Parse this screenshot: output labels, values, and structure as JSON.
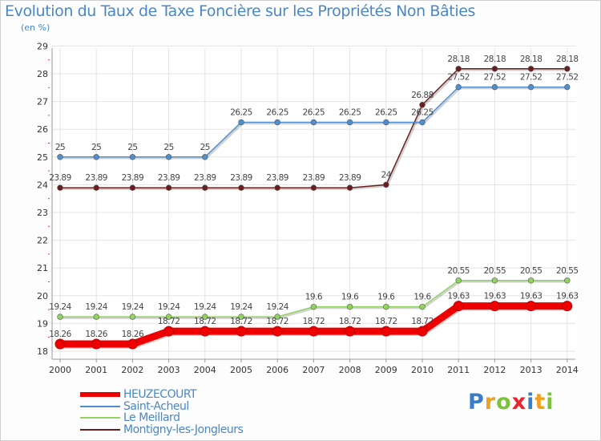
{
  "chart_data": {
    "type": "line",
    "title": "Evolution du Taux de Taxe Foncière sur les Propriétés Non Bâties",
    "subtitle": "(en %)",
    "xlabel": "",
    "ylabel": "",
    "x": [
      "2000",
      "2001",
      "2002",
      "2003",
      "2004",
      "2005",
      "2006",
      "2007",
      "2008",
      "2009",
      "2010",
      "2011",
      "2012",
      "2013",
      "2014"
    ],
    "yticks": [
      18,
      19,
      20,
      21,
      22,
      23,
      24,
      25,
      26,
      27,
      28,
      29
    ],
    "ylim": [
      18,
      29
    ],
    "grid": true,
    "legend_position": "bottom-left",
    "series": [
      {
        "name": "HEUZECOURT",
        "color": "#ee0000",
        "values": [
          18.26,
          18.26,
          18.26,
          18.72,
          18.72,
          18.72,
          18.72,
          18.72,
          18.72,
          18.72,
          18.72,
          19.63,
          19.63,
          19.63,
          19.63
        ],
        "labels": [
          "18.26",
          "18.26",
          "18.26",
          "18.72",
          "18.72",
          "18.72",
          "18.72",
          "18.72",
          "18.72",
          "18.72",
          "18.72",
          "19.63",
          "19.63",
          "19.63",
          "19.63"
        ]
      },
      {
        "name": "Saint-Acheul",
        "color": "#4f8fd0",
        "values": [
          25,
          25,
          25,
          25,
          25,
          26.25,
          26.25,
          26.25,
          26.25,
          26.25,
          26.25,
          27.52,
          27.52,
          27.52,
          27.52
        ],
        "labels": [
          "25",
          "25",
          "25",
          "25",
          "25",
          "26.25",
          "26.25",
          "26.25",
          "26.25",
          "26.25",
          "26.25",
          "27.52",
          "27.52",
          "27.52",
          "27.52"
        ]
      },
      {
        "name": "Le Meillard",
        "color": "#90d45e",
        "values": [
          19.24,
          19.24,
          19.24,
          19.24,
          19.24,
          19.24,
          19.24,
          19.6,
          19.6,
          19.6,
          19.6,
          20.55,
          20.55,
          20.55,
          20.55
        ],
        "labels": [
          "19.24",
          "19.24",
          "19.24",
          "19.24",
          "19.24",
          "19.24",
          "19.24",
          "19.6",
          "19.6",
          "19.6",
          "19.6",
          "20.55",
          "20.55",
          "20.55",
          "20.55"
        ]
      },
      {
        "name": "Montigny-les-Jongleurs",
        "color": "#6b1e1e",
        "values": [
          23.89,
          23.89,
          23.89,
          23.89,
          23.89,
          23.89,
          23.89,
          23.89,
          23.89,
          24,
          26.88,
          28.18,
          28.18,
          28.18,
          28.18
        ],
        "labels": [
          "23.89",
          "23.89",
          "23.89",
          "23.89",
          "23.89",
          "23.89",
          "23.89",
          "23.89",
          "23.89",
          "24",
          "26.88",
          "28.18",
          "28.18",
          "28.18",
          "28.18"
        ]
      }
    ]
  },
  "logo": {
    "letters": [
      "P",
      "r",
      "o",
      "x",
      "i",
      "t",
      "i"
    ],
    "colors": [
      "#3a7ec9",
      "#f0a020",
      "#7cc23b",
      "#e8262a",
      "#3a7ec9",
      "#f0a020",
      "#7cc23b"
    ]
  }
}
